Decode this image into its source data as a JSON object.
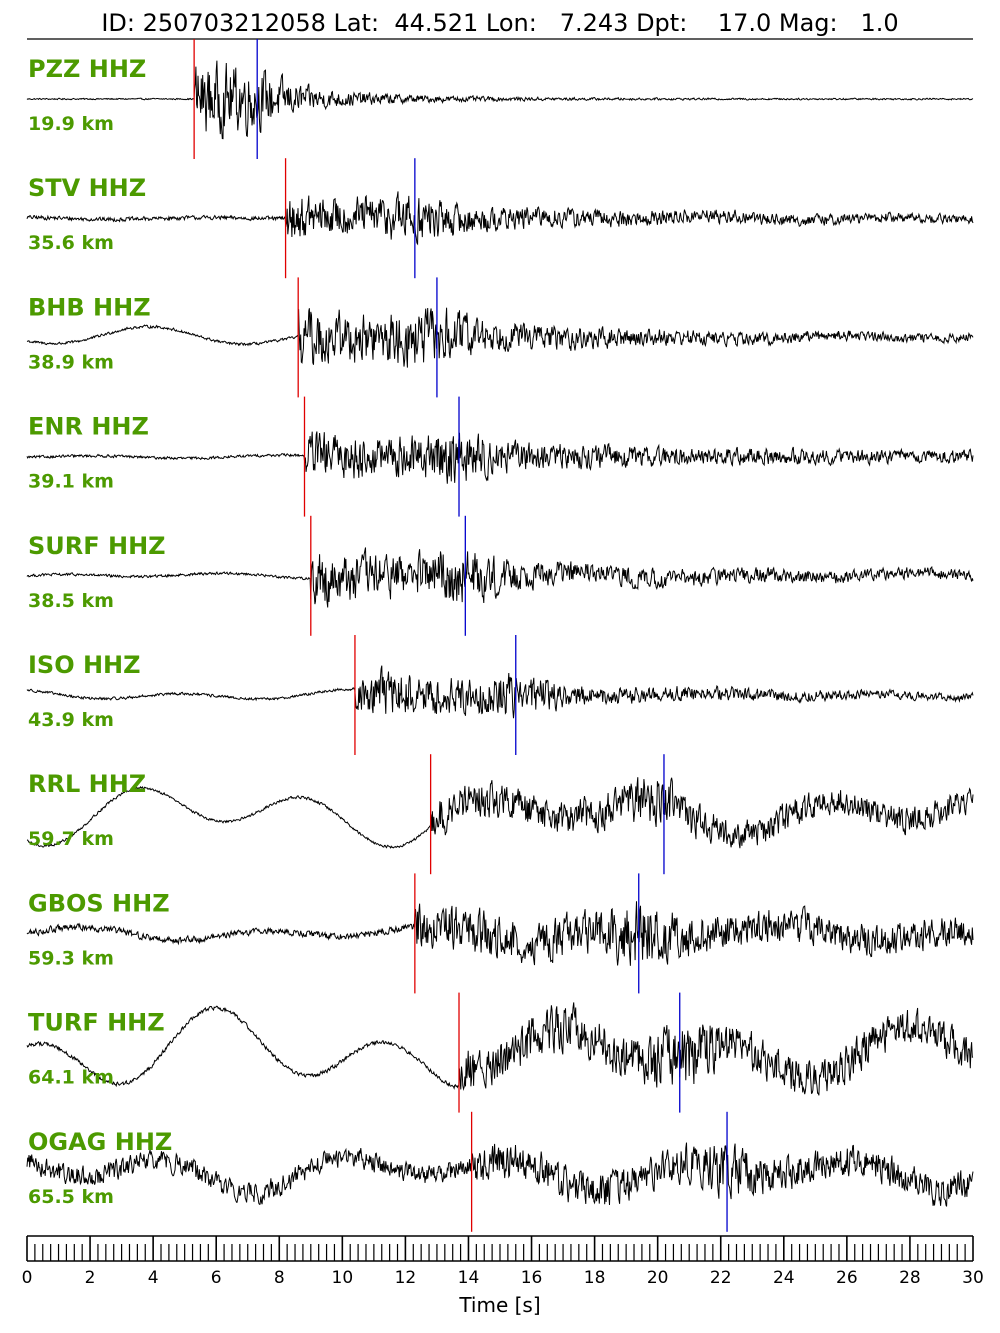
{
  "header": {
    "title": "ID: 250703212058 Lat:  44.521 Lon:   7.243 Dpt:    17.0 Mag:   1.0"
  },
  "colors": {
    "label": "#4c9a00",
    "p_pick": "#e00000",
    "s_pick": "#0000cc",
    "trace": "#000000"
  },
  "chart_data": {
    "type": "line",
    "title": "ID: 250703212058 Lat:  44.521 Lon:   7.243 Dpt:    17.0 Mag:   1.0",
    "xlabel": "Time [s]",
    "ylabel": "",
    "xlim": [
      0,
      30
    ],
    "x_ticks": [
      0,
      2,
      4,
      6,
      8,
      10,
      12,
      14,
      16,
      18,
      20,
      22,
      24,
      26,
      28,
      30
    ],
    "x_tick_labels": [
      "0",
      "2",
      "4",
      "6",
      "8",
      "10",
      "12",
      "14",
      "16",
      "18",
      "20",
      "22",
      "24",
      "26",
      "28",
      "30"
    ],
    "minor_tick_step": 0.25,
    "traces": [
      {
        "station": "PZZ HHZ",
        "distance": "19.9 km",
        "p_time": 5.3,
        "s_time": 7.3,
        "pre_noise": 0.01,
        "pre_lf": 0.0,
        "peak": 0.85,
        "decay": 3.0,
        "late_floor": 0.02,
        "post_lf": 0.0
      },
      {
        "station": "STV HHZ",
        "distance": "35.6 km",
        "p_time": 8.2,
        "s_time": 12.3,
        "pre_noise": 0.03,
        "pre_lf": 0.02,
        "peak": 0.55,
        "decay": 8.0,
        "late_floor": 0.08,
        "post_lf": 0.04
      },
      {
        "station": "BHB HHZ",
        "distance": "38.9 km",
        "p_time": 8.6,
        "s_time": 13.0,
        "pre_noise": 0.02,
        "pre_lf": 0.18,
        "peak": 0.75,
        "decay": 7.0,
        "late_floor": 0.07,
        "post_lf": 0.04
      },
      {
        "station": "ENR HHZ",
        "distance": "39.1 km",
        "p_time": 8.8,
        "s_time": 13.7,
        "pre_noise": 0.02,
        "pre_lf": 0.03,
        "peak": 0.6,
        "decay": 9.0,
        "late_floor": 0.1,
        "post_lf": 0.0
      },
      {
        "station": "SURF HHZ",
        "distance": "38.5 km",
        "p_time": 9.0,
        "s_time": 13.9,
        "pre_noise": 0.02,
        "pre_lf": 0.05,
        "peak": 0.7,
        "decay": 7.0,
        "late_floor": 0.1,
        "post_lf": 0.06
      },
      {
        "station": "ISO HHZ",
        "distance": "43.9 km",
        "p_time": 10.4,
        "s_time": 15.5,
        "pre_noise": 0.02,
        "pre_lf": 0.1,
        "peak": 0.6,
        "decay": 7.0,
        "late_floor": 0.06,
        "post_lf": 0.04
      },
      {
        "station": "RRL HHZ",
        "distance": "59.7 km",
        "p_time": 12.8,
        "s_time": 20.2,
        "pre_noise": 0.02,
        "pre_lf": 0.55,
        "peak": 0.5,
        "decay": 12.0,
        "late_floor": 0.25,
        "post_lf": 0.35
      },
      {
        "station": "GBOS HHZ",
        "distance": "59.3 km",
        "p_time": 12.3,
        "s_time": 19.4,
        "pre_noise": 0.05,
        "pre_lf": 0.12,
        "peak": 0.6,
        "decay": 12.0,
        "late_floor": 0.3,
        "post_lf": 0.15
      },
      {
        "station": "TURF HHZ",
        "distance": "64.1 km",
        "p_time": 13.7,
        "s_time": 20.7,
        "pre_noise": 0.03,
        "pre_lf": 0.75,
        "peak": 0.6,
        "decay": 14.0,
        "late_floor": 0.35,
        "post_lf": 0.45
      },
      {
        "station": "OGAG HHZ",
        "distance": "65.5 km",
        "p_time": 14.1,
        "s_time": 22.2,
        "pre_noise": 0.15,
        "pre_lf": 0.35,
        "peak": 0.45,
        "decay": 12.0,
        "late_floor": 0.35,
        "post_lf": 0.3
      }
    ]
  }
}
